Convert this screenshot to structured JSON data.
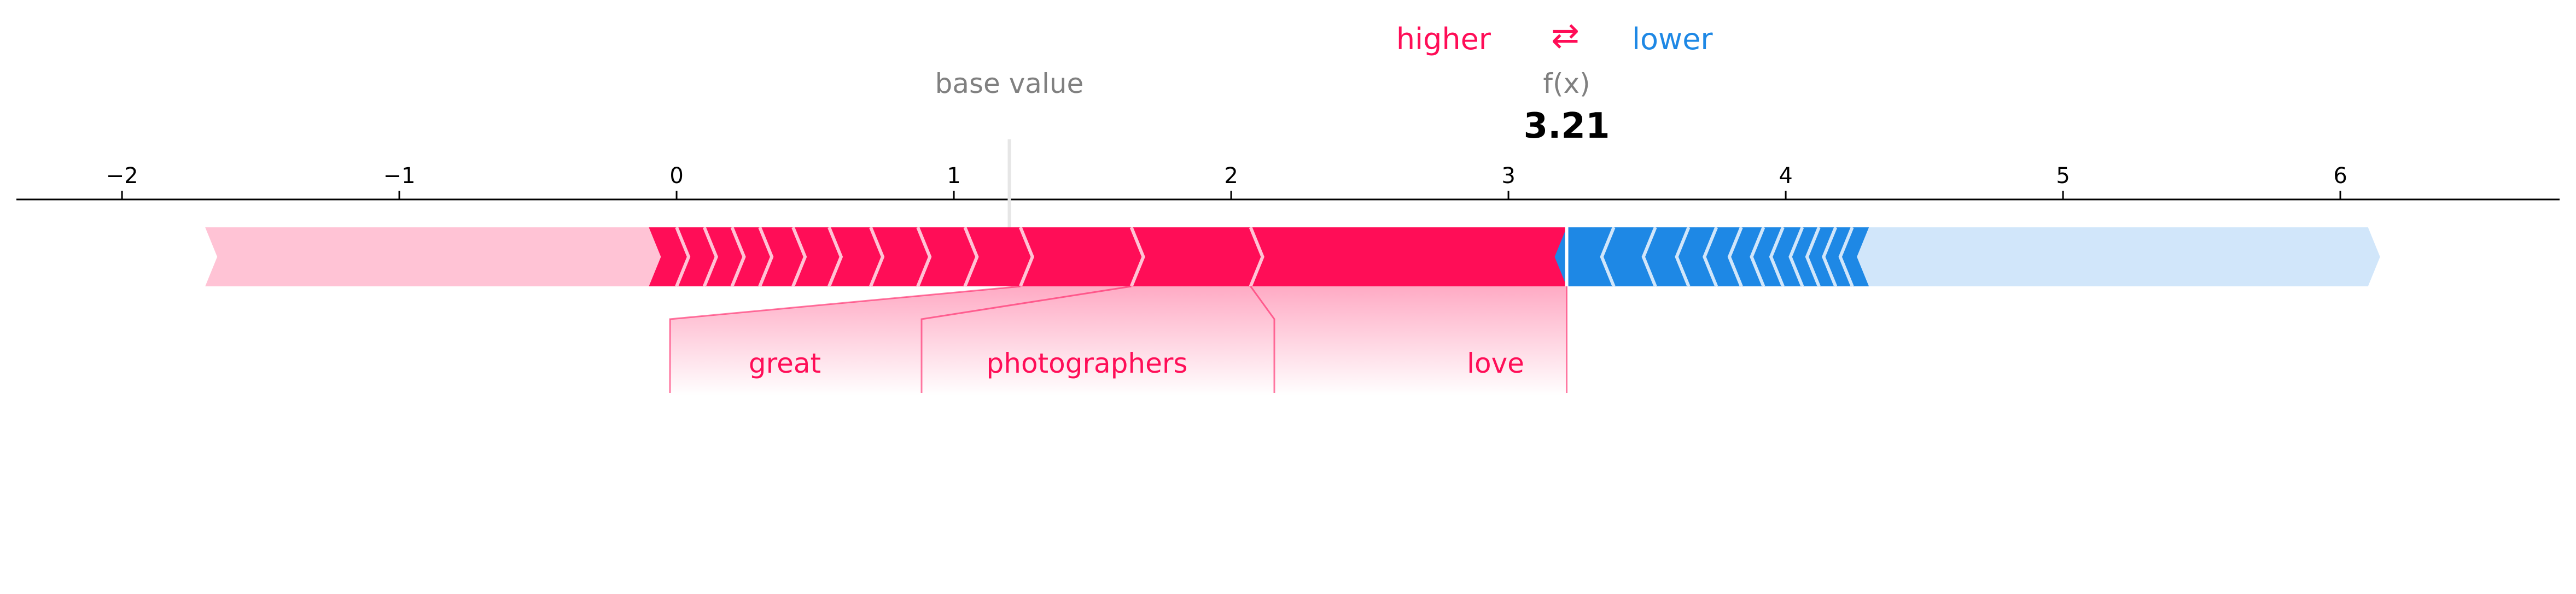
{
  "chart_data": {
    "type": "force",
    "legend": {
      "higher_label": "higher",
      "lower_label": "lower",
      "arrow_glyph": "⇄",
      "higher_color": "#ff0d57",
      "lower_color": "#1e88e5"
    },
    "base_value": {
      "label": "base value",
      "value": 1.2
    },
    "output": {
      "label": "f(x)",
      "value": 3.21,
      "value_text": "3.21"
    },
    "xlim": [
      -2.44,
      6.85
    ],
    "ticks": [
      -2,
      -1,
      0,
      1,
      2,
      3,
      4,
      5,
      6
    ],
    "tick_labels": [
      "−2",
      "−1",
      "0",
      "1",
      "2",
      "3",
      "4",
      "5",
      "6"
    ],
    "bar_extent": [
      -1.7,
      6.1
    ],
    "positive_segments": [
      {
        "from": -0.1,
        "to": 0.0
      },
      {
        "from": 0.0,
        "to": 0.1
      },
      {
        "from": 0.1,
        "to": 0.2
      },
      {
        "from": 0.2,
        "to": 0.3
      },
      {
        "from": 0.3,
        "to": 0.42
      },
      {
        "from": 0.42,
        "to": 0.55
      },
      {
        "from": 0.55,
        "to": 0.7
      },
      {
        "from": 0.7,
        "to": 0.87
      },
      {
        "from": 0.87,
        "to": 1.04
      },
      {
        "from": 1.04,
        "to": 1.24
      },
      {
        "from": 1.24,
        "to": 1.64
      },
      {
        "from": 1.64,
        "to": 2.07
      },
      {
        "from": 2.07,
        "to": 3.21
      }
    ],
    "negative_segments": [
      {
        "from": 3.21,
        "to": 3.38
      },
      {
        "from": 3.38,
        "to": 3.53
      },
      {
        "from": 3.53,
        "to": 3.65
      },
      {
        "from": 3.65,
        "to": 3.75
      },
      {
        "from": 3.75,
        "to": 3.84
      },
      {
        "from": 3.84,
        "to": 3.92
      },
      {
        "from": 3.92,
        "to": 3.99
      },
      {
        "from": 3.99,
        "to": 4.06
      },
      {
        "from": 4.06,
        "to": 4.12
      },
      {
        "from": 4.12,
        "to": 4.18
      },
      {
        "from": 4.18,
        "to": 4.24
      },
      {
        "from": 4.24,
        "to": 4.3
      }
    ],
    "labeled_features": [
      {
        "name": "great",
        "from": 1.24,
        "to": 1.64
      },
      {
        "name": "photographers",
        "from": 1.64,
        "to": 2.07
      },
      {
        "name": "love",
        "from": 2.07,
        "to": 3.21
      }
    ],
    "colors": {
      "positive": "#ff0d57",
      "positive_light": "#ffc3d5",
      "negative": "#1e88e5",
      "negative_light": "#d1e6fa",
      "axis": "#000000",
      "muted": "#808080"
    }
  }
}
